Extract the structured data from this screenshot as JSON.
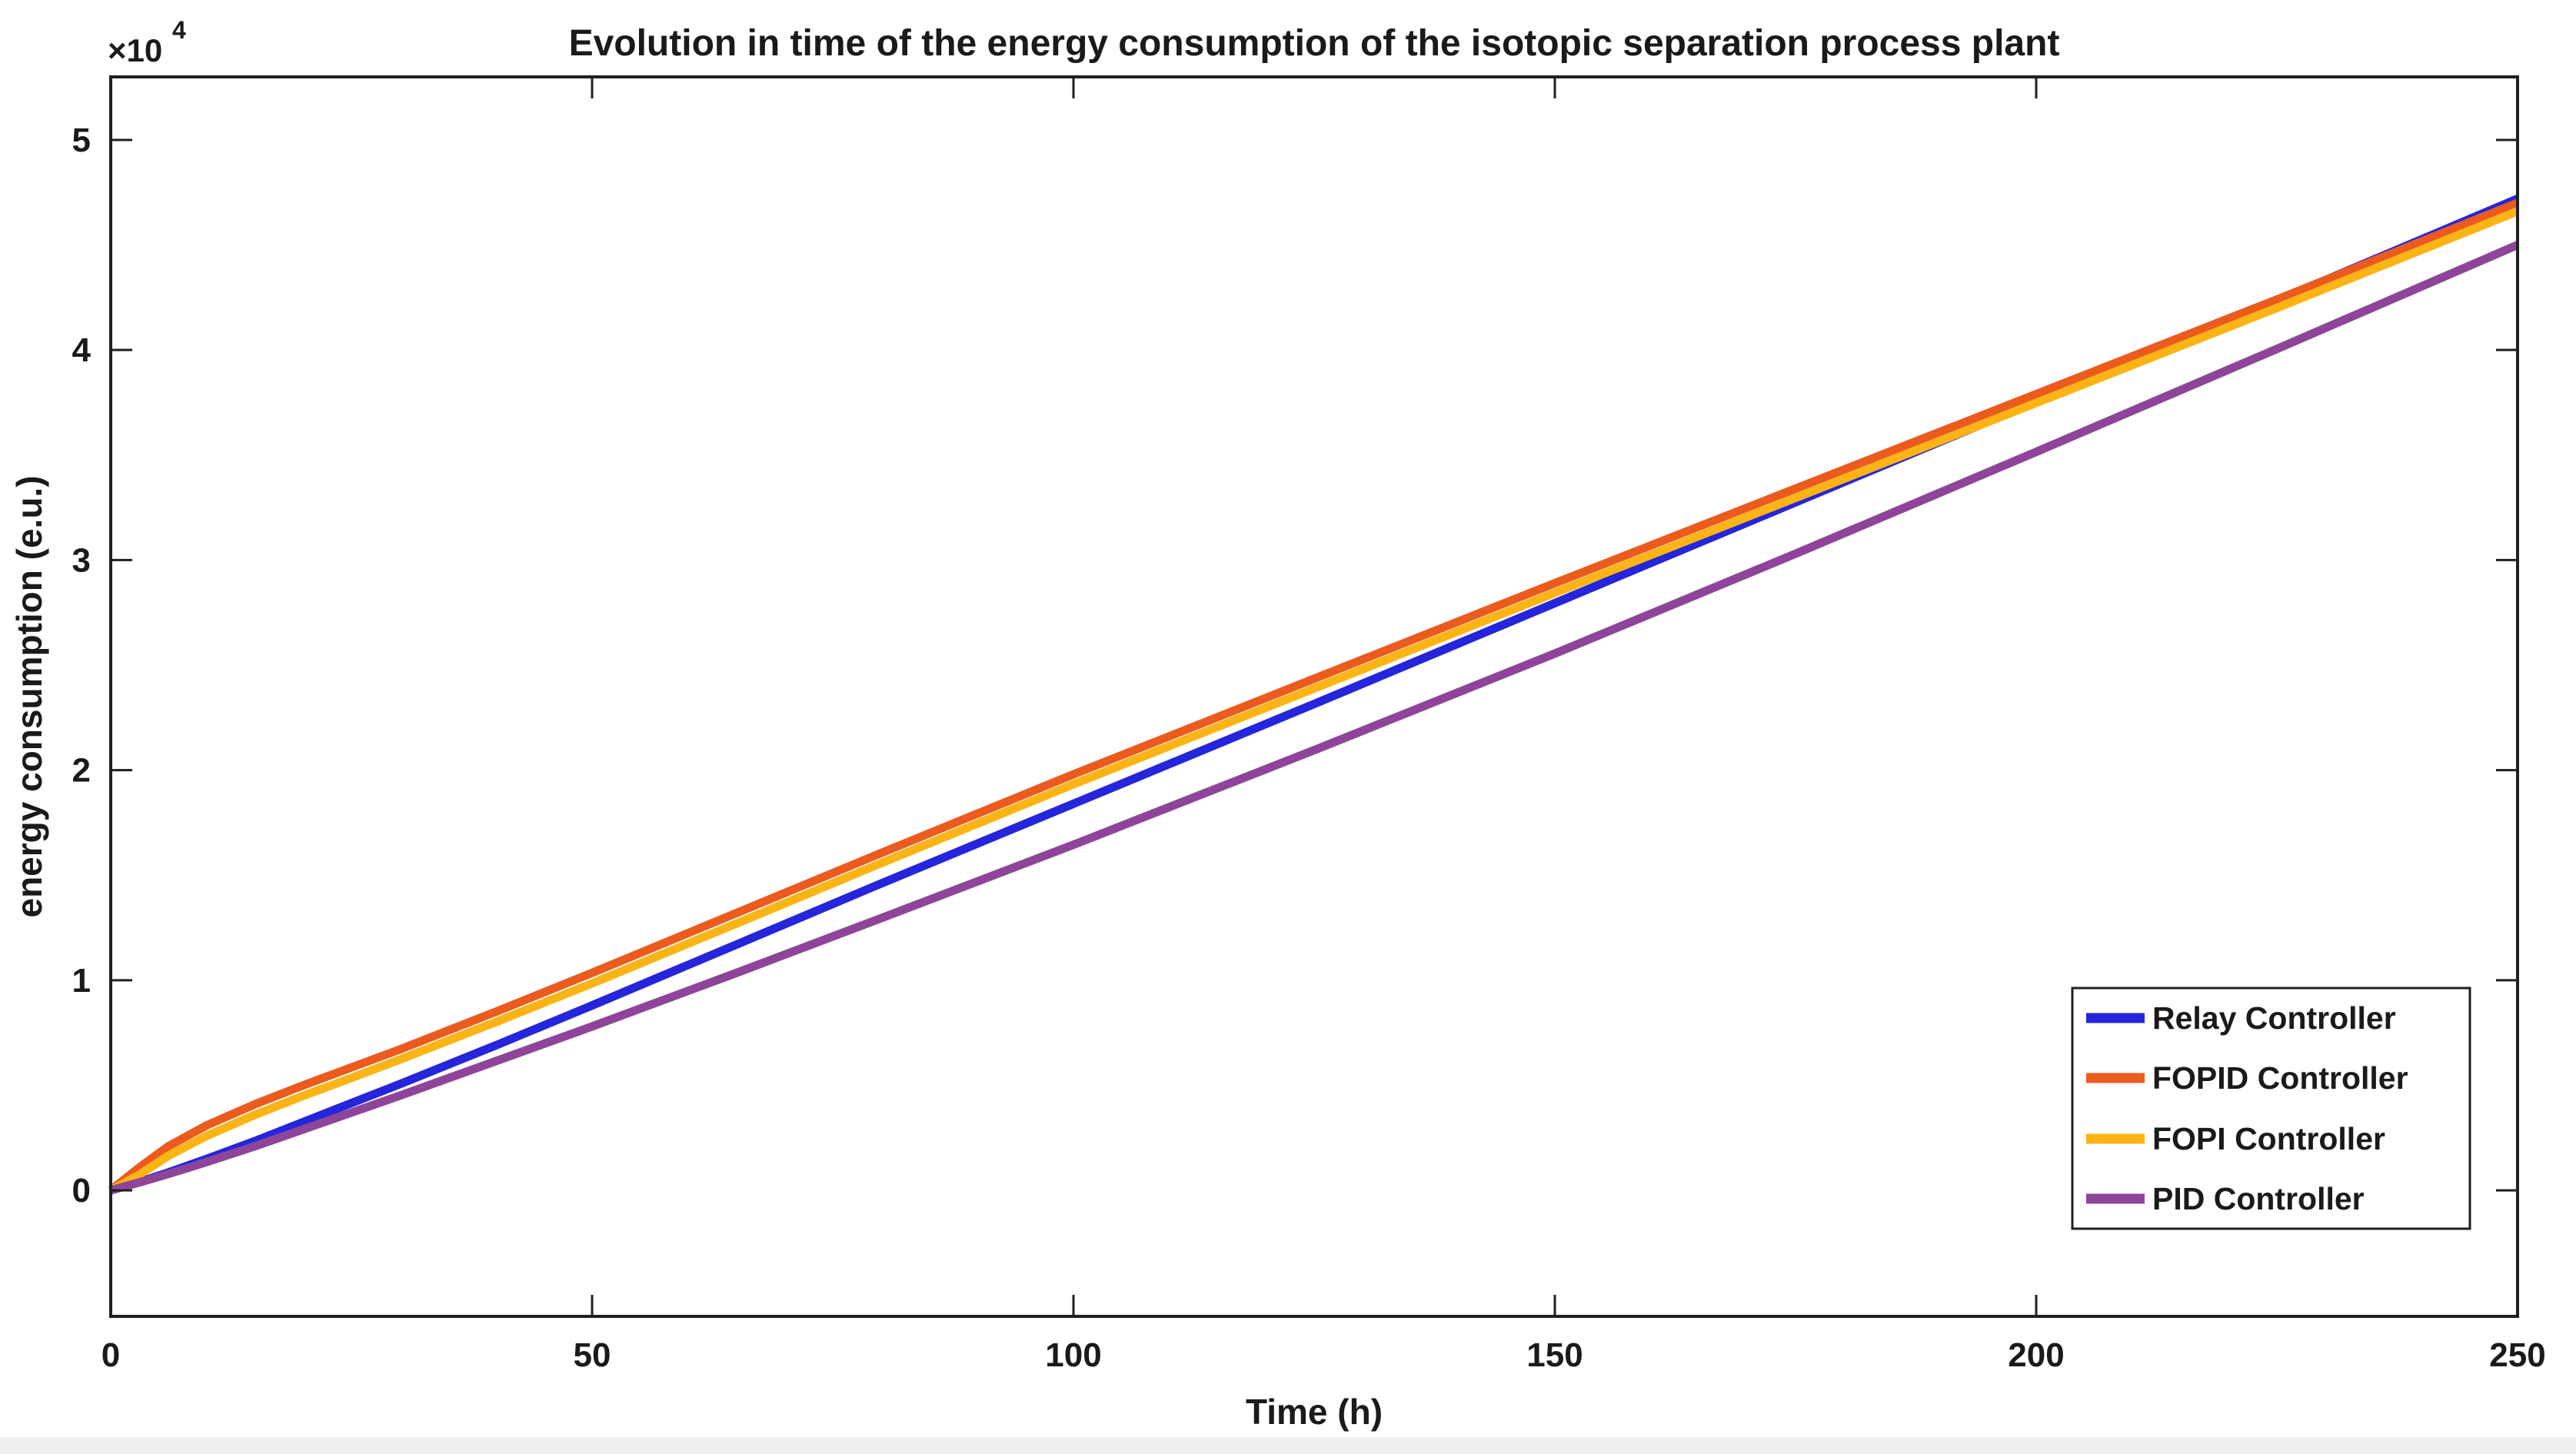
{
  "figure": {
    "exponent_base": "×10",
    "exponent_power": "4"
  },
  "chart_data": {
    "type": "line",
    "title": "Evolution in time of the energy consumption of the isotopic separation process plant",
    "xlabel": "Time (h)",
    "ylabel": "energy consumption (e.u.)",
    "xlim": [
      0,
      250
    ],
    "ylim": [
      -6000,
      53000
    ],
    "xticks": [
      0,
      50,
      100,
      150,
      200,
      250
    ],
    "yticks": [
      0,
      1,
      2,
      3,
      4,
      5
    ],
    "ytick_scale": 10000,
    "y_exponent_text": "×10⁴",
    "grid": false,
    "legend_position": "lower-right-inside",
    "axis_color": "#1f1f1f",
    "x": [
      0,
      3,
      6,
      10,
      15,
      20,
      25,
      30,
      40,
      50,
      65,
      80,
      100,
      125,
      150,
      175,
      200,
      225,
      250
    ],
    "series": [
      {
        "name": "Relay Controller",
        "color": "#2525DB",
        "values": [
          0,
          400,
          850,
          1500,
          2350,
          3250,
          4150,
          5050,
          6900,
          8800,
          11700,
          14600,
          18400,
          23150,
          27950,
          32750,
          37550,
          42350,
          47200
        ]
      },
      {
        "name": "FOPID Controller",
        "color": "#EC5B1E",
        "values": [
          0,
          1100,
          2100,
          3100,
          4100,
          5000,
          5850,
          6700,
          8500,
          10350,
          13200,
          16050,
          19800,
          24350,
          28900,
          33400,
          37900,
          42400,
          47000
        ]
      },
      {
        "name": "FOPI Controller",
        "color": "#FBB415",
        "values": [
          0,
          750,
          1650,
          2600,
          3600,
          4500,
          5350,
          6220,
          8010,
          9850,
          12700,
          15570,
          19330,
          23890,
          28440,
          32960,
          37480,
          42000,
          46600
        ]
      },
      {
        "name": "PID Controller",
        "color": "#8E4599",
        "values": [
          0,
          380,
          780,
          1350,
          2100,
          2900,
          3700,
          4500,
          6150,
          7800,
          10350,
          12950,
          16450,
          20950,
          25550,
          30300,
          35150,
          40050,
          45000
        ]
      }
    ]
  }
}
